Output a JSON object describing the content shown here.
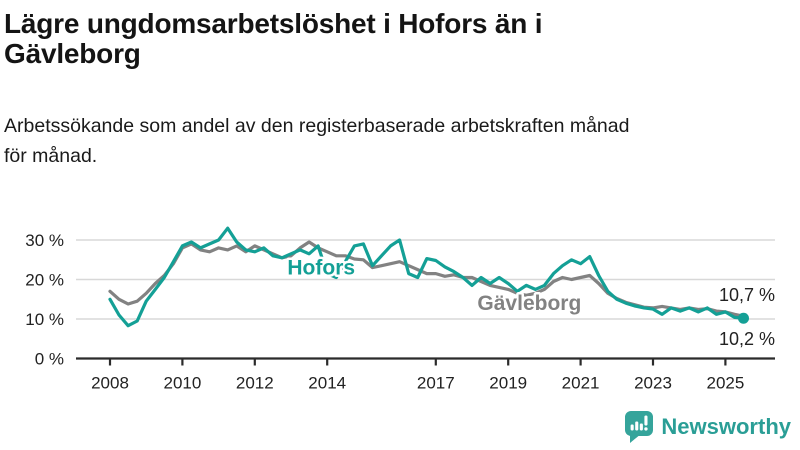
{
  "header": {
    "title": "Lägre ungdomsarbetslöshet i Hofors än i Gävleborg",
    "title_lines": [
      "Lägre ungdomsarbetslöshet i Hofors än i",
      "Gävleborg"
    ],
    "subtitle": "Arbetssökande som andel av den registerbaserade arbetskraften månad för månad.",
    "subtitle_lines": [
      "Arbetssökande som andel av den registerbaserade arbetskraften månad",
      "för månad."
    ]
  },
  "footer": {
    "brand": "Newsworthy",
    "brand_color": "#2a9e96"
  },
  "chart_data": {
    "type": "line",
    "title": "Lägre ungdomsarbetslöshet i Hofors än i Gävleborg",
    "subtitle": "Arbetssökande som andel av den registerbaserade arbetskraften månad för månad.",
    "unit": "%",
    "grid": true,
    "legend": "inline-series-labels",
    "xlim": [
      2008,
      2025.6
    ],
    "ylim": [
      0,
      34
    ],
    "x": [
      2008,
      2008.25,
      2008.5,
      2008.75,
      2009,
      2009.25,
      2009.5,
      2009.75,
      2010,
      2010.25,
      2010.5,
      2010.75,
      2011,
      2011.25,
      2011.5,
      2011.75,
      2012,
      2012.25,
      2012.5,
      2012.75,
      2013,
      2013.25,
      2013.5,
      2013.75,
      2014,
      2014.25,
      2014.5,
      2014.75,
      2015,
      2015.25,
      2015.5,
      2015.75,
      2016,
      2016.25,
      2016.5,
      2016.75,
      2017,
      2017.25,
      2017.5,
      2017.75,
      2018,
      2018.25,
      2018.5,
      2018.75,
      2019,
      2019.25,
      2019.5,
      2019.75,
      2020,
      2020.25,
      2020.5,
      2020.75,
      2021,
      2021.25,
      2021.5,
      2021.75,
      2022,
      2022.25,
      2022.5,
      2022.75,
      2023,
      2023.25,
      2023.5,
      2023.75,
      2024,
      2024.25,
      2024.5,
      2024.75,
      2025,
      2025.25,
      2025.5
    ],
    "series": [
      {
        "name": "Hofors",
        "key": "hofors",
        "label": "Hofors",
        "color": "#14a096",
        "end_label": "10,2 %",
        "end_value": 10.2,
        "end_dot": true,
        "end_label_v": 3.4,
        "label_anchor": {
          "x": 2012.9,
          "v": 21.3
        },
        "values": [
          15.0,
          11.0,
          8.3,
          9.5,
          14.5,
          17.5,
          20.5,
          24.5,
          28.5,
          29.5,
          28.0,
          29.0,
          30.0,
          33.0,
          29.5,
          27.5,
          27.0,
          28.0,
          26.0,
          25.5,
          26.5,
          27.5,
          26.5,
          28.5,
          21.5,
          20.5,
          24.5,
          28.5,
          29.0,
          23.5,
          26.0,
          28.5,
          30.0,
          21.5,
          20.5,
          25.3,
          24.8,
          23.2,
          22.0,
          20.5,
          18.5,
          20.5,
          19.0,
          20.5,
          19.0,
          17.0,
          18.5,
          17.5,
          18.5,
          21.5,
          23.5,
          25.0,
          24.0,
          25.8,
          21.0,
          17.0,
          15.0,
          14.0,
          13.3,
          12.8,
          12.5,
          11.2,
          12.8,
          12.0,
          12.8,
          11.8,
          12.8,
          11.2,
          11.8,
          10.4,
          10.2
        ]
      },
      {
        "name": "Gävleborg",
        "key": "gavleborg",
        "label": "Gävleborg",
        "color": "#828282",
        "end_label": "10,7 %",
        "end_value": 10.7,
        "end_dot": false,
        "end_label_v": 14.6,
        "label_anchor": {
          "x": 2018.15,
          "v": 12.3
        },
        "values": [
          17.0,
          15.0,
          13.8,
          14.5,
          16.5,
          19.0,
          21.0,
          24.0,
          28.0,
          29.0,
          27.5,
          27.0,
          28.0,
          27.5,
          28.5,
          27.0,
          28.5,
          27.5,
          26.5,
          25.5,
          26.0,
          28.0,
          29.5,
          28.0,
          27.0,
          26.0,
          26.0,
          25.2,
          25.0,
          23.0,
          23.5,
          24.0,
          24.5,
          23.5,
          22.5,
          21.5,
          21.5,
          20.8,
          21.2,
          20.5,
          20.5,
          19.5,
          18.5,
          18.0,
          17.5,
          16.5,
          16.0,
          16.5,
          17.5,
          19.5,
          20.5,
          20.0,
          20.5,
          21.0,
          19.0,
          16.5,
          15.2,
          14.2,
          13.6,
          13.0,
          12.8,
          13.2,
          12.8,
          12.4,
          12.8,
          12.4,
          12.6,
          12.0,
          11.8,
          11.2,
          10.7
        ]
      }
    ],
    "yticks": [
      {
        "value": 0,
        "label": "0 %"
      },
      {
        "value": 10,
        "label": "10 %"
      },
      {
        "value": 20,
        "label": "20 %"
      },
      {
        "value": 30,
        "label": "30 %"
      }
    ],
    "xticks": [
      {
        "value": 2008,
        "label": "2008"
      },
      {
        "value": 2010,
        "label": "2010"
      },
      {
        "value": 2012,
        "label": "2012"
      },
      {
        "value": 2014,
        "label": "2014"
      },
      {
        "value": 2017,
        "label": "2017"
      },
      {
        "value": 2019,
        "label": "2019"
      },
      {
        "value": 2021,
        "label": "2021"
      },
      {
        "value": 2023,
        "label": "2023"
      },
      {
        "value": 2025,
        "label": "2025"
      }
    ]
  }
}
